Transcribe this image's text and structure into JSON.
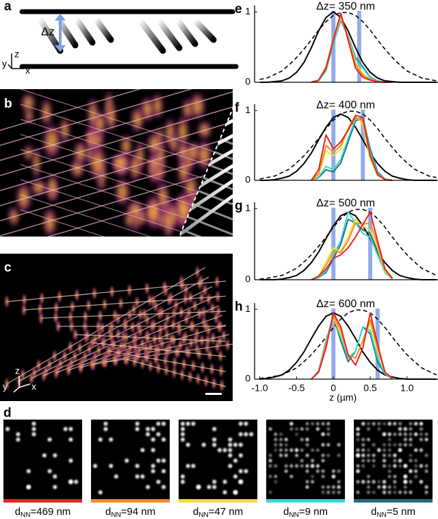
{
  "panel_a": {
    "label": "a",
    "gap_label": "Δz",
    "axis_labels": [
      "z",
      "y",
      "x"
    ]
  },
  "panel_b": {
    "label": "b"
  },
  "panel_c": {
    "label": "c",
    "axis_labels": [
      "z",
      "y",
      "x"
    ]
  },
  "panel_d": {
    "label": "d",
    "images": [
      {
        "label": "d",
        "subscript": "NN",
        "suffix": "=469 nm",
        "color": "#e8231f"
      },
      {
        "label": "d",
        "subscript": "NN",
        "suffix": "=94 nm",
        "color": "#f28c28"
      },
      {
        "label": "d",
        "subscript": "NN",
        "suffix": "=47 nm",
        "color": "#f0e030"
      },
      {
        "label": "d",
        "subscript": "NN",
        "suffix": "=9 nm",
        "color": "#3cd6d6"
      },
      {
        "label": "d",
        "subscript": "NN",
        "suffix": "=5 nm",
        "color": "#1f6f78"
      }
    ]
  },
  "chart_data": [
    {
      "type": "line",
      "panel": "e",
      "title": "Δz= 350 nm",
      "x": [
        -1,
        -0.9,
        -0.8,
        -0.7,
        -0.6,
        -0.5,
        -0.4,
        -0.3,
        -0.2,
        -0.1,
        0,
        0.1,
        0.2,
        0.3,
        0.4,
        0.5,
        0.6,
        0.7,
        0.8,
        0.9,
        1,
        1.1,
        1.2,
        1.3,
        1.4
      ],
      "xlim": [
        -1.07,
        1.42
      ],
      "ylim": [
        0,
        1.09
      ],
      "yticks": [
        0,
        1
      ],
      "markers": [
        0,
        0.35
      ],
      "marker_color": "#7f9ee8",
      "series": [
        {
          "color": "#000000",
          "dash": true,
          "values": [
            0.04,
            0.06,
            0.11,
            0.16,
            0.25,
            0.35,
            0.47,
            0.6,
            0.74,
            0.86,
            0.95,
            0.99,
            0.99,
            0.95,
            0.86,
            0.74,
            0.6,
            0.47,
            0.35,
            0.25,
            0.16,
            0.11,
            0.06,
            0.04,
            0.02
          ]
        },
        {
          "color": "#000000",
          "dash": false,
          "values": [
            0,
            0,
            0.01,
            0.02,
            0.06,
            0.14,
            0.28,
            0.49,
            0.73,
            0.92,
            1,
            0.92,
            0.73,
            0.49,
            0.28,
            0.14,
            0.06,
            0.02,
            0.01,
            0,
            0,
            0,
            0,
            0,
            0
          ]
        },
        {
          "color": "#1f6f78",
          "dash": false,
          "values": [
            null,
            null,
            null,
            null,
            null,
            null,
            null,
            0,
            0.02,
            0.17,
            0.55,
            0.88,
            0.66,
            0.35,
            0.22,
            0.07,
            0.02,
            0,
            0,
            null,
            null,
            null,
            null,
            null,
            null
          ]
        },
        {
          "color": "#3cd6d6",
          "dash": false,
          "values": [
            null,
            null,
            null,
            null,
            null,
            null,
            null,
            0,
            0.02,
            0.18,
            0.55,
            0.9,
            0.65,
            0.33,
            0.2,
            0.06,
            0.02,
            0,
            0,
            null,
            null,
            null,
            null,
            null,
            null
          ]
        },
        {
          "color": "#f0e030",
          "dash": false,
          "values": [
            null,
            null,
            null,
            null,
            null,
            null,
            null,
            0,
            0.03,
            0.2,
            0.6,
            0.93,
            0.63,
            0.28,
            0.12,
            0.04,
            0.01,
            0,
            0,
            null,
            null,
            null,
            null,
            null,
            null
          ]
        },
        {
          "color": "#f28c28",
          "dash": false,
          "values": [
            null,
            null,
            null,
            null,
            null,
            null,
            null,
            0,
            0.03,
            0.22,
            0.62,
            0.95,
            0.62,
            0.25,
            0.1,
            0.04,
            0.01,
            0,
            0,
            null,
            null,
            null,
            null,
            null,
            null
          ]
        },
        {
          "color": "#e8231f",
          "dash": false,
          "values": [
            null,
            null,
            null,
            null,
            null,
            null,
            null,
            0,
            0.03,
            0.2,
            0.6,
            0.98,
            0.6,
            0.2,
            0.07,
            0.03,
            0.01,
            0,
            0,
            null,
            null,
            null,
            null,
            null,
            null
          ]
        }
      ]
    },
    {
      "type": "line",
      "panel": "f",
      "title": "Δz= 400 nm",
      "x": [
        -1,
        -0.9,
        -0.8,
        -0.7,
        -0.6,
        -0.5,
        -0.4,
        -0.3,
        -0.2,
        -0.1,
        0,
        0.1,
        0.2,
        0.3,
        0.4,
        0.5,
        0.6,
        0.7,
        0.8,
        0.9,
        1,
        1.1,
        1.2,
        1.3,
        1.4
      ],
      "xlim": [
        -1.07,
        1.42
      ],
      "ylim": [
        0,
        1.09
      ],
      "yticks": [
        0,
        1
      ],
      "markers": [
        0,
        0.4
      ],
      "marker_color": "#7f9ee8",
      "series": [
        {
          "color": "#000000",
          "dash": true,
          "values": [
            0.02,
            0.04,
            0.06,
            0.11,
            0.16,
            0.25,
            0.35,
            0.47,
            0.6,
            0.74,
            0.86,
            0.95,
            0.99,
            0.99,
            0.95,
            0.86,
            0.74,
            0.6,
            0.47,
            0.35,
            0.25,
            0.16,
            0.11,
            0.06,
            0.04
          ]
        },
        {
          "color": "#000000",
          "dash": false,
          "values": [
            0,
            0,
            0.01,
            0.03,
            0.06,
            0.13,
            0.24,
            0.39,
            0.58,
            0.76,
            0.9,
            0.95,
            0.9,
            0.76,
            0.58,
            0.39,
            0.24,
            0.13,
            0.06,
            0.03,
            0.01,
            0,
            0,
            0,
            0
          ]
        },
        {
          "color": "#1f6f78",
          "dash": false,
          "values": [
            null,
            null,
            null,
            null,
            null,
            null,
            null,
            0,
            0.04,
            0.15,
            0.12,
            0.25,
            0.55,
            0.85,
            0.9,
            0.45,
            0.12,
            0.02,
            0,
            null,
            null,
            null,
            null,
            null,
            null
          ]
        },
        {
          "color": "#3cd6d6",
          "dash": false,
          "values": [
            null,
            null,
            null,
            null,
            null,
            null,
            null,
            0,
            0.05,
            0.2,
            0.15,
            0.3,
            0.6,
            0.88,
            0.9,
            0.4,
            0.1,
            0.02,
            0,
            null,
            null,
            null,
            null,
            null,
            null
          ]
        },
        {
          "color": "#f0e030",
          "dash": false,
          "values": [
            null,
            null,
            null,
            null,
            null,
            null,
            null,
            0,
            0.08,
            0.42,
            0.35,
            0.45,
            0.75,
            0.92,
            0.8,
            0.3,
            0.07,
            0.01,
            0,
            null,
            null,
            null,
            null,
            null,
            null
          ]
        },
        {
          "color": "#f28c28",
          "dash": false,
          "values": [
            null,
            null,
            null,
            null,
            null,
            null,
            null,
            0,
            0.1,
            0.5,
            0.4,
            0.5,
            0.72,
            0.9,
            0.85,
            0.35,
            0.08,
            0.01,
            0,
            null,
            null,
            null,
            null,
            null,
            null
          ]
        },
        {
          "color": "#e8231f",
          "dash": false,
          "values": [
            null,
            null,
            null,
            null,
            null,
            null,
            null,
            0,
            0.15,
            0.65,
            0.45,
            0.55,
            0.72,
            0.93,
            0.9,
            0.35,
            0.08,
            0.01,
            0,
            null,
            null,
            null,
            null,
            null,
            null
          ]
        }
      ]
    },
    {
      "type": "line",
      "panel": "g",
      "title": "Δz= 500 nm",
      "x": [
        -1,
        -0.9,
        -0.8,
        -0.7,
        -0.6,
        -0.5,
        -0.4,
        -0.3,
        -0.2,
        -0.1,
        0,
        0.1,
        0.2,
        0.3,
        0.4,
        0.5,
        0.6,
        0.7,
        0.8,
        0.9,
        1,
        1.1,
        1.2,
        1.3,
        1.4
      ],
      "xlim": [
        -1.07,
        1.42
      ],
      "ylim": [
        0,
        1.09
      ],
      "yticks": [
        0,
        1
      ],
      "markers": [
        0,
        0.5
      ],
      "marker_color": "#7f9ee8",
      "series": [
        {
          "color": "#000000",
          "dash": true,
          "values": [
            0.01,
            0.02,
            0.04,
            0.06,
            0.11,
            0.16,
            0.25,
            0.35,
            0.47,
            0.6,
            0.74,
            0.86,
            0.95,
            0.99,
            0.99,
            0.95,
            0.86,
            0.74,
            0.6,
            0.47,
            0.35,
            0.25,
            0.16,
            0.11,
            0.06
          ]
        },
        {
          "color": "#000000",
          "dash": false,
          "values": [
            0,
            0,
            0,
            0.01,
            0.03,
            0.06,
            0.13,
            0.24,
            0.39,
            0.58,
            0.76,
            0.9,
            0.95,
            0.9,
            0.76,
            0.58,
            0.39,
            0.24,
            0.13,
            0.06,
            0.03,
            0.01,
            0,
            0,
            0
          ]
        },
        {
          "color": "#1f6f78",
          "dash": false,
          "values": [
            null,
            null,
            null,
            null,
            null,
            null,
            null,
            0,
            0.03,
            0.1,
            0.3,
            0.5,
            0.85,
            0.8,
            0.7,
            0.65,
            0.4,
            0.12,
            0.01,
            null,
            null,
            null,
            null,
            null,
            null
          ]
        },
        {
          "color": "#3cd6d6",
          "dash": false,
          "values": [
            null,
            null,
            null,
            null,
            null,
            null,
            null,
            0,
            0.03,
            0.12,
            0.35,
            0.55,
            0.95,
            0.8,
            0.65,
            0.6,
            0.35,
            0.1,
            0.01,
            null,
            null,
            null,
            null,
            null,
            null
          ]
        },
        {
          "color": "#f0e030",
          "dash": false,
          "values": [
            null,
            null,
            null,
            null,
            null,
            null,
            null,
            0,
            0.05,
            0.25,
            0.45,
            0.4,
            0.6,
            0.85,
            0.75,
            0.7,
            0.45,
            0.12,
            0.02,
            null,
            null,
            null,
            null,
            null,
            null
          ]
        },
        {
          "color": "#f28c28",
          "dash": false,
          "values": [
            null,
            null,
            null,
            null,
            null,
            null,
            null,
            0,
            0.05,
            0.2,
            0.4,
            0.38,
            0.55,
            0.8,
            0.78,
            0.8,
            0.5,
            0.14,
            0.02,
            null,
            null,
            null,
            null,
            null,
            null
          ]
        },
        {
          "color": "#e8231f",
          "dash": false,
          "values": [
            null,
            null,
            null,
            null,
            null,
            null,
            null,
            0,
            0.05,
            0.15,
            0.3,
            0.35,
            0.45,
            0.6,
            0.78,
            0.95,
            0.55,
            0.15,
            0.02,
            null,
            null,
            null,
            null,
            null,
            null
          ]
        }
      ]
    },
    {
      "type": "line",
      "panel": "h",
      "title": "Δz= 600 nm",
      "x": [
        -1,
        -0.9,
        -0.8,
        -0.7,
        -0.6,
        -0.5,
        -0.4,
        -0.3,
        -0.2,
        -0.1,
        0,
        0.1,
        0.2,
        0.3,
        0.4,
        0.5,
        0.6,
        0.7,
        0.8,
        0.9,
        1,
        1.1,
        1.2,
        1.3,
        1.4
      ],
      "xlim": [
        -1.07,
        1.42
      ],
      "ylim": [
        0,
        1.09
      ],
      "yticks": [
        0,
        1
      ],
      "markers": [
        0,
        0.6
      ],
      "marker_color": "#7f9ee8",
      "xticks": [
        {
          "value": -1,
          "label": "-1.0"
        },
        -0.5,
        0,
        0.5,
        {
          "value": 1,
          "label": "1.0"
        }
      ],
      "xlabel": "z (µm)",
      "series": [
        {
          "color": "#000000",
          "dash": true,
          "values": [
            0.01,
            0.02,
            0.04,
            0.06,
            0.11,
            0.16,
            0.25,
            0.35,
            0.47,
            0.6,
            0.74,
            0.86,
            0.95,
            0.99,
            0.99,
            0.95,
            0.86,
            0.74,
            0.6,
            0.47,
            0.35,
            0.25,
            0.16,
            0.11,
            0.06
          ]
        },
        {
          "color": "#000000",
          "dash": false,
          "values": [
            0,
            0.01,
            0.03,
            0.06,
            0.13,
            0.24,
            0.39,
            0.58,
            0.76,
            0.9,
            0.95,
            0.9,
            0.76,
            0.58,
            0.39,
            0.24,
            0.13,
            0.06,
            0.03,
            0.01,
            0,
            0,
            0,
            0,
            0
          ]
        },
        {
          "color": "#1f6f78",
          "dash": false,
          "values": [
            null,
            null,
            null,
            null,
            null,
            null,
            null,
            0,
            0.12,
            0.55,
            0.9,
            0.55,
            0.25,
            0.4,
            0.75,
            0.65,
            0.25,
            0.07,
            0.01,
            null,
            null,
            null,
            null,
            null,
            null
          ]
        },
        {
          "color": "#3cd6d6",
          "dash": false,
          "values": [
            null,
            null,
            null,
            null,
            null,
            null,
            null,
            0,
            0.12,
            0.55,
            0.92,
            0.6,
            0.3,
            0.4,
            0.75,
            0.7,
            0.3,
            0.08,
            0.01,
            null,
            null,
            null,
            null,
            null,
            null
          ]
        },
        {
          "color": "#f0e030",
          "dash": false,
          "values": [
            null,
            null,
            null,
            null,
            null,
            null,
            null,
            0,
            0.1,
            0.5,
            0.88,
            0.65,
            0.35,
            0.3,
            0.55,
            0.8,
            0.4,
            0.1,
            0.01,
            null,
            null,
            null,
            null,
            null,
            null
          ]
        },
        {
          "color": "#f28c28",
          "dash": false,
          "values": [
            null,
            null,
            null,
            null,
            null,
            null,
            null,
            0,
            0.1,
            0.5,
            0.9,
            0.7,
            0.35,
            0.3,
            0.55,
            0.85,
            0.45,
            0.1,
            0.01,
            null,
            null,
            null,
            null,
            null,
            null
          ]
        },
        {
          "color": "#e8231f",
          "dash": false,
          "values": [
            null,
            null,
            null,
            null,
            null,
            null,
            null,
            0,
            0.1,
            0.45,
            0.95,
            0.75,
            0.35,
            0.2,
            0.45,
            0.95,
            0.5,
            0.1,
            0.01,
            null,
            null,
            null,
            null,
            null,
            null
          ]
        }
      ]
    }
  ]
}
